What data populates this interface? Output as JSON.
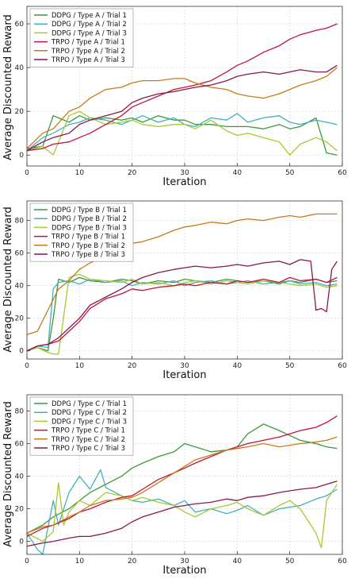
{
  "chart_data": [
    {
      "type": "line",
      "xlabel": "Iteration",
      "ylabel": "Average Discounted Reward",
      "xlim": [
        0,
        60
      ],
      "ylim": [
        -5,
        68
      ],
      "xticks": [
        0,
        10,
        20,
        30,
        40,
        50,
        60
      ],
      "yticks": [
        0,
        20,
        40,
        60
      ],
      "grid": true,
      "legend_position": "top-left",
      "series": [
        {
          "name": "DDPG  / Type A / Trial 1",
          "color": "#3a9a3a",
          "x": [
            0,
            3,
            5,
            8,
            10,
            12,
            15,
            18,
            20,
            22,
            25,
            28,
            30,
            32,
            35,
            38,
            40,
            42,
            45,
            48,
            50,
            52,
            55,
            57,
            59
          ],
          "y": [
            3,
            4,
            18,
            15,
            18,
            16,
            17,
            16,
            17,
            15,
            18,
            16,
            16,
            14,
            14,
            13,
            13,
            13,
            12,
            14,
            12,
            13,
            17,
            1,
            0
          ]
        },
        {
          "name": "DDPG  / Type A / Trial 2",
          "color": "#40b0c0",
          "x": [
            0,
            3,
            5,
            8,
            10,
            12,
            15,
            18,
            20,
            22,
            25,
            28,
            30,
            32,
            35,
            38,
            40,
            42,
            45,
            48,
            50,
            52,
            55,
            57,
            59
          ],
          "y": [
            2,
            8,
            10,
            14,
            15,
            17,
            16,
            14,
            16,
            18,
            15,
            17,
            14,
            13,
            17,
            16,
            19,
            15,
            17,
            18,
            15,
            14,
            16,
            15,
            14
          ]
        },
        {
          "name": "DDPG  / Type A / Trial 3",
          "color": "#a8c830",
          "x": [
            0,
            3,
            5,
            8,
            10,
            12,
            15,
            18,
            20,
            22,
            25,
            28,
            30,
            32,
            35,
            38,
            40,
            42,
            45,
            48,
            50,
            52,
            55,
            57,
            59
          ],
          "y": [
            2,
            4,
            0,
            18,
            20,
            17,
            14,
            15,
            16,
            14,
            13,
            14,
            14,
            12,
            16,
            11,
            9,
            10,
            8,
            6,
            0,
            5,
            8,
            6,
            2
          ]
        },
        {
          "name": "TRPO  / Type A / Trial 1",
          "color": "#c0143c",
          "x": [
            0,
            3,
            5,
            8,
            10,
            12,
            15,
            18,
            20,
            22,
            25,
            28,
            30,
            32,
            35,
            38,
            40,
            42,
            45,
            48,
            50,
            52,
            55,
            57,
            59
          ],
          "y": [
            2,
            3,
            5,
            6,
            8,
            10,
            14,
            18,
            22,
            24,
            27,
            30,
            31,
            32,
            34,
            38,
            41,
            43,
            47,
            50,
            53,
            55,
            57,
            58,
            60
          ]
        },
        {
          "name": "TRPO  / Type A / Trial 2",
          "color": "#c87a1a",
          "x": [
            0,
            3,
            5,
            8,
            10,
            12,
            15,
            18,
            20,
            22,
            25,
            28,
            30,
            32,
            35,
            38,
            40,
            42,
            45,
            48,
            50,
            52,
            55,
            57,
            59
          ],
          "y": [
            3,
            10,
            12,
            20,
            22,
            26,
            30,
            31,
            33,
            34,
            34,
            35,
            35,
            33,
            31,
            30,
            28,
            27,
            26,
            28,
            30,
            32,
            34,
            36,
            40
          ]
        },
        {
          "name": "TRPO  / Type A / Trial 3",
          "color": "#8c1450",
          "x": [
            0,
            3,
            5,
            8,
            10,
            12,
            15,
            18,
            20,
            22,
            25,
            28,
            30,
            32,
            35,
            38,
            40,
            42,
            45,
            48,
            50,
            52,
            55,
            57,
            59
          ],
          "y": [
            2,
            6,
            8,
            10,
            14,
            16,
            18,
            20,
            24,
            26,
            28,
            29,
            30,
            31,
            32,
            34,
            36,
            37,
            38,
            37,
            38,
            39,
            38,
            38,
            41
          ]
        }
      ]
    },
    {
      "type": "line",
      "xlabel": "Iteration",
      "ylabel": "Average Discounted Reward",
      "xlim": [
        0,
        60
      ],
      "ylim": [
        -5,
        92
      ],
      "xticks": [
        0,
        10,
        20,
        30,
        40,
        50,
        60
      ],
      "yticks": [
        0,
        20,
        40,
        60,
        80
      ],
      "grid": true,
      "legend_position": "top-left",
      "series": [
        {
          "name": "DDPG  / Type B / Trial 1",
          "color": "#3a9a3a",
          "x": [
            0,
            2,
            4,
            5,
            6,
            8,
            10,
            12,
            15,
            18,
            20,
            22,
            25,
            28,
            30,
            32,
            35,
            38,
            40,
            42,
            45,
            48,
            50,
            52,
            55,
            57,
            59
          ],
          "y": [
            0,
            2,
            0,
            20,
            44,
            42,
            45,
            43,
            42,
            44,
            43,
            41,
            43,
            42,
            44,
            43,
            42,
            44,
            43,
            42,
            43,
            41,
            43,
            42,
            44,
            42,
            43
          ]
        },
        {
          "name": "DDPG  / Type B / Trial 2",
          "color": "#40b0c0",
          "x": [
            0,
            2,
            4,
            5,
            6,
            8,
            10,
            12,
            15,
            18,
            20,
            22,
            25,
            28,
            30,
            32,
            35,
            38,
            40,
            42,
            45,
            48,
            50,
            52,
            55,
            57,
            59
          ],
          "y": [
            0,
            3,
            2,
            38,
            42,
            43,
            41,
            44,
            42,
            43,
            40,
            42,
            41,
            43,
            40,
            42,
            43,
            41,
            42,
            43,
            41,
            42,
            43,
            41,
            42,
            40,
            41
          ]
        },
        {
          "name": "DDPG  / Type B / Trial 3",
          "color": "#a8c830",
          "x": [
            0,
            2,
            4,
            5,
            6,
            8,
            10,
            12,
            15,
            18,
            20,
            22,
            25,
            28,
            30,
            32,
            35,
            38,
            40,
            42,
            45,
            48,
            50,
            52,
            55,
            57,
            59
          ],
          "y": [
            0,
            2,
            -1,
            -2,
            -2,
            45,
            47,
            44,
            43,
            42,
            44,
            41,
            42,
            40,
            42,
            43,
            41,
            43,
            42,
            41,
            43,
            42,
            41,
            40,
            41,
            39,
            40
          ]
        },
        {
          "name": "TRPO  / Type B / Trial 1",
          "color": "#c0143c",
          "x": [
            0,
            2,
            4,
            6,
            8,
            10,
            12,
            15,
            18,
            20,
            22,
            25,
            28,
            30,
            32,
            35,
            38,
            40,
            42,
            45,
            48,
            50,
            52,
            55,
            57,
            59
          ],
          "y": [
            0,
            3,
            4,
            6,
            12,
            18,
            26,
            32,
            35,
            38,
            37,
            39,
            40,
            41,
            40,
            42,
            41,
            43,
            42,
            44,
            42,
            45,
            43,
            44,
            42,
            45
          ]
        },
        {
          "name": "TRPO  / Type B / Trial 2",
          "color": "#c87a1a",
          "x": [
            0,
            2,
            4,
            6,
            8,
            10,
            12,
            15,
            18,
            20,
            22,
            25,
            28,
            30,
            32,
            35,
            38,
            40,
            42,
            45,
            48,
            50,
            52,
            55,
            57,
            59
          ],
          "y": [
            10,
            12,
            25,
            38,
            43,
            50,
            54,
            58,
            62,
            66,
            67,
            70,
            74,
            76,
            77,
            79,
            78,
            80,
            81,
            80,
            82,
            83,
            82,
            84,
            84,
            84
          ]
        },
        {
          "name": "TRPO  / Type B / Trial 3",
          "color": "#8c1450",
          "x": [
            0,
            2,
            4,
            6,
            8,
            10,
            12,
            15,
            18,
            20,
            22,
            25,
            28,
            30,
            32,
            35,
            38,
            40,
            42,
            45,
            48,
            50,
            52,
            54,
            55,
            56,
            57,
            58,
            59
          ],
          "y": [
            0,
            3,
            4,
            8,
            14,
            20,
            28,
            33,
            38,
            42,
            45,
            48,
            50,
            51,
            52,
            51,
            52,
            53,
            52,
            54,
            55,
            53,
            56,
            55,
            25,
            26,
            24,
            50,
            55
          ]
        }
      ]
    },
    {
      "type": "line",
      "xlabel": "Iteration",
      "ylabel": "Average Discounted Reward",
      "xlim": [
        0,
        60
      ],
      "ylim": [
        -8,
        90
      ],
      "xticks": [
        0,
        10,
        20,
        30,
        40,
        50,
        60
      ],
      "yticks": [
        0,
        20,
        40,
        60,
        80
      ],
      "grid": true,
      "legend_position": "top-left",
      "series": [
        {
          "name": "DDPG  / Type C / Trial 1",
          "color": "#3a9a3a",
          "x": [
            0,
            3,
            5,
            8,
            10,
            12,
            15,
            18,
            20,
            22,
            25,
            28,
            30,
            32,
            35,
            38,
            40,
            42,
            45,
            48,
            50,
            52,
            55,
            57,
            59
          ],
          "y": [
            5,
            10,
            15,
            20,
            25,
            30,
            35,
            40,
            45,
            48,
            52,
            55,
            60,
            58,
            55,
            56,
            58,
            66,
            72,
            68,
            65,
            62,
            60,
            58,
            57
          ]
        },
        {
          "name": "DDPG  / Type C / Trial 2",
          "color": "#40b0c0",
          "x": [
            0,
            2,
            3,
            5,
            6,
            8,
            10,
            12,
            14,
            15,
            18,
            20,
            22,
            25,
            28,
            30,
            32,
            35,
            38,
            40,
            42,
            45,
            48,
            50,
            52,
            55,
            57,
            59
          ],
          "y": [
            5,
            -5,
            -8,
            25,
            10,
            30,
            40,
            32,
            44,
            33,
            28,
            25,
            24,
            26,
            22,
            25,
            18,
            20,
            17,
            19,
            22,
            16,
            20,
            21,
            22,
            26,
            28,
            32
          ]
        },
        {
          "name": "DDPG  / Type C / Trial 3",
          "color": "#a8c830",
          "x": [
            0,
            3,
            5,
            6,
            7,
            8,
            10,
            12,
            15,
            18,
            20,
            22,
            25,
            28,
            30,
            32,
            35,
            38,
            40,
            42,
            45,
            48,
            50,
            52,
            55,
            56,
            57,
            59
          ],
          "y": [
            5,
            0,
            6,
            36,
            10,
            18,
            25,
            22,
            30,
            28,
            25,
            27,
            24,
            22,
            18,
            15,
            20,
            22,
            24,
            20,
            16,
            22,
            25,
            20,
            5,
            -4,
            25,
            35
          ]
        },
        {
          "name": "TRPO  / Type C / Trial 1",
          "color": "#c0143c",
          "x": [
            0,
            3,
            5,
            8,
            10,
            12,
            15,
            18,
            20,
            22,
            25,
            28,
            30,
            32,
            35,
            38,
            40,
            42,
            45,
            48,
            50,
            52,
            55,
            57,
            59
          ],
          "y": [
            3,
            8,
            10,
            14,
            18,
            20,
            24,
            27,
            28,
            32,
            38,
            42,
            45,
            48,
            52,
            56,
            58,
            60,
            62,
            64,
            66,
            68,
            70,
            73,
            77
          ]
        },
        {
          "name": "TRPO  / Type C / Trial 2",
          "color": "#c87a1a",
          "x": [
            0,
            3,
            5,
            8,
            10,
            12,
            15,
            18,
            20,
            22,
            25,
            28,
            30,
            32,
            35,
            38,
            40,
            42,
            45,
            48,
            50,
            52,
            55,
            57,
            59
          ],
          "y": [
            5,
            9,
            10,
            15,
            18,
            22,
            25,
            26,
            27,
            30,
            36,
            42,
            46,
            50,
            53,
            56,
            57,
            58,
            60,
            58,
            59,
            60,
            61,
            62,
            64
          ]
        },
        {
          "name": "TRPO  / Type C / Trial 3",
          "color": "#8c1450",
          "x": [
            0,
            3,
            5,
            8,
            10,
            12,
            15,
            18,
            20,
            22,
            25,
            28,
            30,
            32,
            35,
            38,
            40,
            42,
            45,
            48,
            50,
            52,
            55,
            57,
            59
          ],
          "y": [
            -3,
            -1,
            0,
            2,
            3,
            3,
            5,
            8,
            12,
            15,
            18,
            21,
            22,
            23,
            24,
            26,
            25,
            27,
            28,
            30,
            31,
            32,
            33,
            35,
            37
          ]
        }
      ]
    }
  ]
}
